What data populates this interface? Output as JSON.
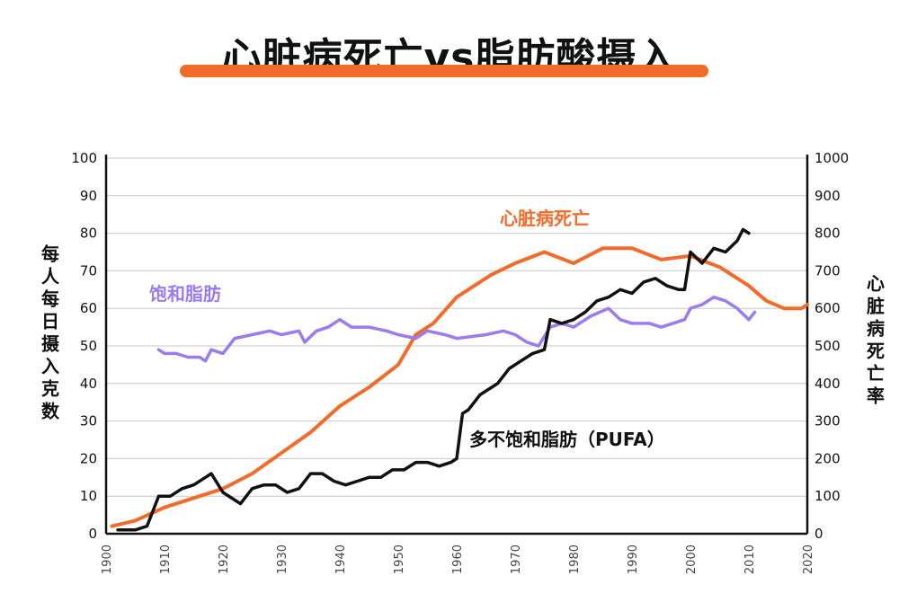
{
  "chart_data": {
    "type": "line",
    "title": "心脏病死亡vs脂肪酸摄入",
    "ylabel_left": "每人每日摄入克数",
    "ylabel_right": "心脏病死亡率",
    "xlim": [
      1900,
      2020
    ],
    "ylim_left": [
      0,
      100
    ],
    "ylim_right": [
      0,
      1000
    ],
    "x_ticks": [
      1900,
      1910,
      1920,
      1930,
      1940,
      1950,
      1960,
      1970,
      1980,
      1990,
      2000,
      2010,
      2020
    ],
    "y_ticks_left": [
      0,
      10,
      20,
      30,
      40,
      50,
      60,
      70,
      80,
      90,
      100
    ],
    "y_ticks_right": [
      0,
      100,
      200,
      300,
      400,
      500,
      600,
      700,
      800,
      900,
      1000
    ],
    "grid": true,
    "series": [
      {
        "name": "心脏病死亡",
        "axis": "right",
        "color": "#f26b2a",
        "x": [
          1901,
          1905,
          1910,
          1915,
          1920,
          1925,
          1930,
          1935,
          1940,
          1945,
          1950,
          1953,
          1956,
          1960,
          1963,
          1966,
          1970,
          1975,
          1980,
          1985,
          1990,
          1995,
          2000,
          2005,
          2010,
          2013,
          2016,
          2019,
          2020
        ],
        "values": [
          20,
          35,
          70,
          95,
          120,
          160,
          215,
          270,
          340,
          390,
          450,
          530,
          560,
          630,
          660,
          690,
          720,
          750,
          720,
          760,
          760,
          730,
          740,
          710,
          660,
          620,
          600,
          600,
          610
        ]
      },
      {
        "name": "饱和脂肪",
        "axis": "left",
        "color": "#9b7bf0",
        "x": [
          1909,
          1910,
          1912,
          1914,
          1916,
          1917,
          1918,
          1920,
          1922,
          1925,
          1928,
          1930,
          1933,
          1934,
          1936,
          1938,
          1940,
          1942,
          1945,
          1948,
          1950,
          1953,
          1955,
          1958,
          1960,
          1965,
          1968,
          1970,
          1972,
          1974,
          1976,
          1978,
          1980,
          1983,
          1986,
          1988,
          1990,
          1993,
          1995,
          1997,
          1999,
          2000,
          2002,
          2004,
          2006,
          2008,
          2010,
          2011
        ],
        "values": [
          49,
          48,
          48,
          47,
          47,
          46,
          49,
          48,
          52,
          53,
          54,
          53,
          54,
          51,
          54,
          55,
          57,
          55,
          55,
          54,
          53,
          52,
          54,
          53,
          52,
          53,
          54,
          53,
          51,
          50,
          55,
          56,
          55,
          58,
          60,
          57,
          56,
          56,
          55,
          56,
          57,
          60,
          61,
          63,
          62,
          60,
          57,
          59
        ]
      },
      {
        "name": "多不饱和脂肪（PUFA）",
        "axis": "left",
        "color": "#111111",
        "x": [
          1902,
          1905,
          1907,
          1909,
          1911,
          1913,
          1915,
          1917,
          1918,
          1920,
          1922,
          1923,
          1925,
          1927,
          1929,
          1931,
          1933,
          1935,
          1937,
          1939,
          1941,
          1943,
          1945,
          1947,
          1949,
          1951,
          1953,
          1955,
          1957,
          1959,
          1960,
          1961,
          1962,
          1964,
          1966,
          1967,
          1969,
          1971,
          1973,
          1975,
          1976,
          1978,
          1980,
          1982,
          1984,
          1986,
          1988,
          1990,
          1992,
          1994,
          1996,
          1998,
          1999,
          2000,
          2002,
          2004,
          2006,
          2008,
          2009,
          2010
        ],
        "values": [
          1,
          1,
          2,
          10,
          10,
          12,
          13,
          15,
          16,
          11,
          9,
          8,
          12,
          13,
          13,
          11,
          12,
          16,
          16,
          14,
          13,
          14,
          15,
          15,
          17,
          17,
          19,
          19,
          18,
          19,
          20,
          32,
          33,
          37,
          39,
          40,
          44,
          46,
          48,
          49,
          57,
          56,
          57,
          59,
          62,
          63,
          65,
          64,
          67,
          68,
          66,
          65,
          65,
          75,
          72,
          76,
          75,
          78,
          81,
          80
        ]
      }
    ]
  }
}
